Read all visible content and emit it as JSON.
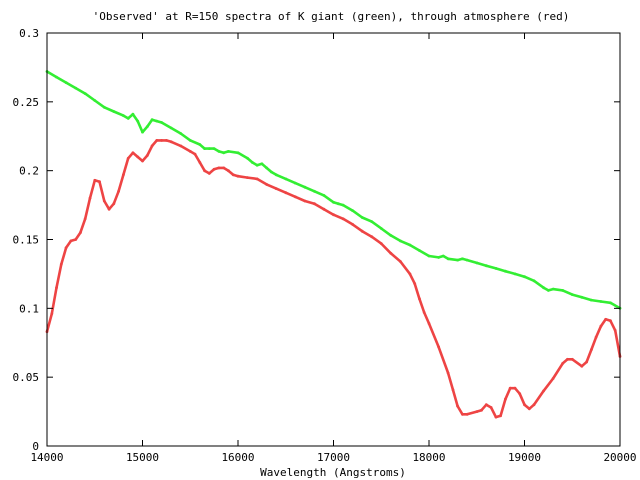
{
  "chart_data": {
    "type": "line",
    "title": "'Observed' at R=150 spectra of K giant (green), through atmosphere (red)",
    "xlabel": "Wavelength (Angstroms)",
    "ylabel": "",
    "xlim": [
      14000,
      20000
    ],
    "ylim": [
      0,
      0.3
    ],
    "xticks": [
      14000,
      15000,
      16000,
      17000,
      18000,
      19000,
      20000
    ],
    "yticks": [
      0,
      0.05,
      0.1,
      0.15,
      0.2,
      0.25,
      0.3
    ],
    "xtick_labels": [
      "14000",
      "15000",
      "16000",
      "17000",
      "18000",
      "19000",
      "20000"
    ],
    "ytick_labels": [
      "0",
      "0.05",
      "0.1",
      "0.15",
      "0.2",
      "0.25",
      "0.3"
    ],
    "grid": false,
    "legend": "none",
    "series": [
      {
        "color": "#33ee33",
        "x": [
          14000,
          14100,
          14200,
          14300,
          14400,
          14500,
          14600,
          14700,
          14800,
          14850,
          14900,
          14950,
          15000,
          15050,
          15100,
          15150,
          15200,
          15300,
          15400,
          15500,
          15600,
          15650,
          15700,
          15750,
          15800,
          15850,
          15900,
          16000,
          16100,
          16150,
          16200,
          16250,
          16300,
          16350,
          16400,
          16500,
          16600,
          16700,
          16800,
          16900,
          17000,
          17050,
          17100,
          17200,
          17300,
          17400,
          17500,
          17600,
          17700,
          17800,
          17900,
          18000,
          18100,
          18150,
          18200,
          18300,
          18350,
          18400,
          18500,
          18600,
          18700,
          18800,
          18900,
          19000,
          19100,
          19200,
          19250,
          19300,
          19400,
          19500,
          19600,
          19700,
          19800,
          19900,
          20000
        ],
        "values": [
          0.272,
          0.268,
          0.264,
          0.26,
          0.256,
          0.251,
          0.246,
          0.243,
          0.24,
          0.238,
          0.241,
          0.236,
          0.228,
          0.232,
          0.237,
          0.236,
          0.235,
          0.231,
          0.227,
          0.222,
          0.219,
          0.216,
          0.216,
          0.216,
          0.214,
          0.213,
          0.214,
          0.213,
          0.209,
          0.206,
          0.204,
          0.205,
          0.202,
          0.199,
          0.197,
          0.194,
          0.191,
          0.188,
          0.185,
          0.182,
          0.177,
          0.176,
          0.175,
          0.171,
          0.166,
          0.163,
          0.158,
          0.153,
          0.149,
          0.146,
          0.142,
          0.138,
          0.137,
          0.138,
          0.136,
          0.135,
          0.136,
          0.135,
          0.133,
          0.131,
          0.129,
          0.127,
          0.125,
          0.123,
          0.12,
          0.115,
          0.113,
          0.114,
          0.113,
          0.11,
          0.108,
          0.106,
          0.105,
          0.104,
          0.1
        ]
      },
      {
        "color": "#ee4444",
        "x": [
          14000,
          14050,
          14100,
          14150,
          14200,
          14250,
          14300,
          14350,
          14400,
          14450,
          14500,
          14550,
          14600,
          14650,
          14700,
          14750,
          14800,
          14850,
          14900,
          14950,
          15000,
          15050,
          15100,
          15150,
          15200,
          15250,
          15300,
          15400,
          15500,
          15550,
          15600,
          15650,
          15700,
          15750,
          15800,
          15850,
          15900,
          15950,
          16000,
          16100,
          16200,
          16300,
          16400,
          16500,
          16600,
          16700,
          16800,
          16900,
          17000,
          17100,
          17200,
          17300,
          17400,
          17500,
          17600,
          17700,
          17800,
          17850,
          17900,
          17950,
          18000,
          18100,
          18200,
          18250,
          18300,
          18350,
          18400,
          18500,
          18550,
          18600,
          18650,
          18700,
          18750,
          18800,
          18850,
          18900,
          18950,
          19000,
          19050,
          19100,
          19200,
          19300,
          19400,
          19450,
          19500,
          19600,
          19650,
          19700,
          19750,
          19800,
          19850,
          19900,
          19950,
          20000
        ],
        "values": [
          0.083,
          0.096,
          0.115,
          0.132,
          0.144,
          0.149,
          0.15,
          0.155,
          0.165,
          0.18,
          0.193,
          0.192,
          0.178,
          0.172,
          0.176,
          0.185,
          0.197,
          0.209,
          0.213,
          0.21,
          0.207,
          0.211,
          0.218,
          0.222,
          0.222,
          0.222,
          0.221,
          0.218,
          0.214,
          0.212,
          0.206,
          0.2,
          0.198,
          0.201,
          0.202,
          0.202,
          0.2,
          0.197,
          0.196,
          0.195,
          0.194,
          0.19,
          0.187,
          0.184,
          0.181,
          0.178,
          0.176,
          0.172,
          0.168,
          0.165,
          0.161,
          0.156,
          0.152,
          0.147,
          0.14,
          0.134,
          0.125,
          0.118,
          0.107,
          0.097,
          0.089,
          0.072,
          0.053,
          0.041,
          0.029,
          0.023,
          0.023,
          0.025,
          0.026,
          0.03,
          0.028,
          0.021,
          0.022,
          0.034,
          0.042,
          0.042,
          0.038,
          0.03,
          0.027,
          0.03,
          0.04,
          0.049,
          0.06,
          0.063,
          0.063,
          0.058,
          0.061,
          0.07,
          0.079,
          0.087,
          0.092,
          0.091,
          0.084,
          0.065
        ]
      }
    ]
  }
}
